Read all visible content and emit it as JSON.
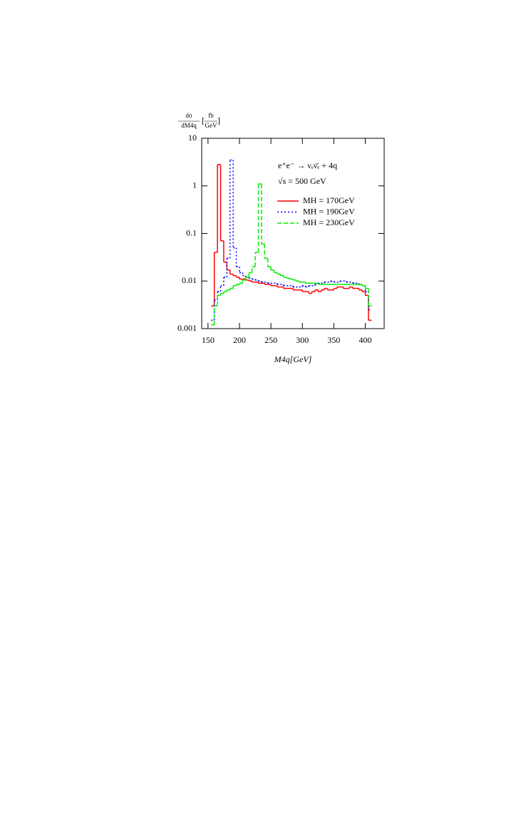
{
  "chart_data": {
    "type": "histogram",
    "ylabel_num": "dσ",
    "ylabel_den": "dM4q",
    "yunit_num": "fb",
    "yunit_den": "GeV",
    "xlabel": "M4q[GeV]",
    "annotations": [
      "e⁺e⁻ → νₑν̄ₑ + 4q",
      "√s = 500 GeV"
    ],
    "ylog": true,
    "xlim": [
      140,
      430
    ],
    "ylim": [
      0.001,
      10
    ],
    "xticks": [
      150,
      200,
      250,
      300,
      350,
      400
    ],
    "yticks": [
      0.001,
      0.01,
      0.1,
      1,
      10
    ],
    "bins": [
      155,
      160,
      165,
      170,
      175,
      180,
      185,
      190,
      195,
      200,
      205,
      210,
      215,
      220,
      225,
      230,
      235,
      240,
      245,
      250,
      255,
      260,
      265,
      270,
      275,
      280,
      285,
      290,
      295,
      300,
      305,
      310,
      315,
      320,
      325,
      330,
      335,
      340,
      345,
      350,
      355,
      360,
      365,
      370,
      375,
      380,
      385,
      390,
      395,
      400,
      405,
      410
    ],
    "series": [
      {
        "name": "MH = 170GeV",
        "color": "#ff0000",
        "dash": "none",
        "values": [
          0.003,
          0.04,
          2.8,
          0.07,
          0.025,
          0.017,
          0.014,
          0.013,
          0.012,
          0.011,
          0.011,
          0.0105,
          0.01,
          0.0095,
          0.0095,
          0.009,
          0.009,
          0.0085,
          0.0085,
          0.008,
          0.008,
          0.0075,
          0.0075,
          0.007,
          0.007,
          0.007,
          0.0065,
          0.0065,
          0.0065,
          0.006,
          0.006,
          0.0055,
          0.006,
          0.0065,
          0.006,
          0.0065,
          0.007,
          0.0065,
          0.0065,
          0.007,
          0.0075,
          0.0075,
          0.007,
          0.007,
          0.0075,
          0.007,
          0.007,
          0.0065,
          0.006,
          0.005,
          0.0015
        ]
      },
      {
        "name": "MH = 190GeV",
        "color": "#0000ff",
        "dash": "2,3",
        "values": [
          0.0015,
          0.004,
          0.006,
          0.008,
          0.012,
          0.03,
          3.5,
          0.05,
          0.02,
          0.015,
          0.013,
          0.012,
          0.0115,
          0.011,
          0.0105,
          0.01,
          0.0095,
          0.0095,
          0.009,
          0.009,
          0.009,
          0.0085,
          0.0085,
          0.008,
          0.008,
          0.008,
          0.0075,
          0.0075,
          0.0075,
          0.008,
          0.0075,
          0.008,
          0.008,
          0.0085,
          0.009,
          0.009,
          0.0095,
          0.0095,
          0.01,
          0.0095,
          0.0095,
          0.01,
          0.01,
          0.0095,
          0.0095,
          0.009,
          0.009,
          0.0085,
          0.008,
          0.006,
          0.0025
        ]
      },
      {
        "name": "MH = 230GeV",
        "color": "#00ee00",
        "dash": "6,3",
        "values": [
          0.0012,
          0.003,
          0.005,
          0.0055,
          0.006,
          0.0065,
          0.007,
          0.008,
          0.0085,
          0.009,
          0.0105,
          0.012,
          0.015,
          0.02,
          0.04,
          1.1,
          0.06,
          0.03,
          0.02,
          0.017,
          0.015,
          0.014,
          0.013,
          0.012,
          0.0115,
          0.011,
          0.0105,
          0.01,
          0.0095,
          0.0095,
          0.009,
          0.009,
          0.009,
          0.009,
          0.0085,
          0.0085,
          0.0085,
          0.0085,
          0.0085,
          0.0085,
          0.0085,
          0.0085,
          0.0085,
          0.0085,
          0.0085,
          0.0085,
          0.0085,
          0.0085,
          0.008,
          0.007,
          0.003
        ]
      }
    ]
  }
}
